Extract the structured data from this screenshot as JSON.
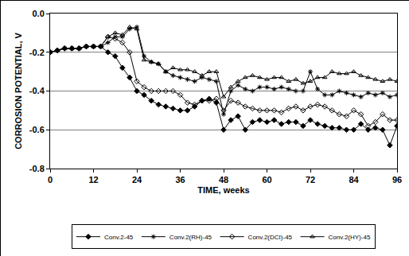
{
  "chart_data": {
    "type": "line",
    "x_label": "TIME, weeks",
    "y_label": "CORROSION POTENTIAL, V",
    "x": [
      0,
      2,
      4,
      6,
      8,
      10,
      12,
      14,
      16,
      18,
      20,
      22,
      24,
      26,
      28,
      30,
      32,
      34,
      36,
      38,
      40,
      42,
      44,
      46,
      48,
      50,
      52,
      54,
      56,
      58,
      60,
      62,
      64,
      66,
      68,
      70,
      72,
      74,
      76,
      78,
      80,
      82,
      84,
      86,
      88,
      90,
      92,
      94,
      96
    ],
    "series": [
      {
        "name": "Conv.2-45",
        "color": "#000000",
        "marker": "diamond",
        "values": [
          -0.2,
          -0.19,
          -0.18,
          -0.18,
          -0.18,
          -0.17,
          -0.17,
          -0.17,
          -0.2,
          -0.22,
          -0.28,
          -0.33,
          -0.4,
          -0.42,
          -0.45,
          -0.47,
          -0.48,
          -0.49,
          -0.5,
          -0.5,
          -0.48,
          -0.45,
          -0.44,
          -0.46,
          -0.6,
          -0.55,
          -0.53,
          -0.6,
          -0.56,
          -0.55,
          -0.56,
          -0.55,
          -0.57,
          -0.56,
          -0.56,
          -0.58,
          -0.55,
          -0.57,
          -0.58,
          -0.59,
          -0.59,
          -0.6,
          -0.6,
          -0.57,
          -0.6,
          -0.59,
          -0.6,
          -0.68,
          -0.58
        ]
      },
      {
        "name": "Conv.2(RH)-45",
        "color": "#000000",
        "marker": "asterisk-open",
        "values": [
          -0.2,
          -0.19,
          -0.18,
          -0.18,
          -0.18,
          -0.17,
          -0.17,
          -0.17,
          -0.15,
          -0.12,
          -0.12,
          -0.08,
          -0.07,
          -0.22,
          -0.25,
          -0.26,
          -0.3,
          -0.32,
          -0.33,
          -0.34,
          -0.35,
          -0.33,
          -0.34,
          -0.35,
          -0.52,
          -0.4,
          -0.37,
          -0.39,
          -0.4,
          -0.38,
          -0.38,
          -0.39,
          -0.38,
          -0.39,
          -0.4,
          -0.4,
          -0.3,
          -0.39,
          -0.42,
          -0.42,
          -0.4,
          -0.41,
          -0.42,
          -0.43,
          -0.41,
          -0.42,
          -0.41,
          -0.43,
          -0.42
        ]
      },
      {
        "name": "Conv.2(DCI)-45",
        "color": "#000000",
        "marker": "diamond-open",
        "values": [
          -0.2,
          -0.19,
          -0.18,
          -0.18,
          -0.18,
          -0.17,
          -0.17,
          -0.17,
          -0.12,
          -0.13,
          -0.15,
          -0.2,
          -0.35,
          -0.38,
          -0.4,
          -0.4,
          -0.4,
          -0.4,
          -0.42,
          -0.46,
          -0.47,
          -0.45,
          -0.45,
          -0.44,
          -0.5,
          -0.45,
          -0.46,
          -0.48,
          -0.49,
          -0.5,
          -0.5,
          -0.5,
          -0.51,
          -0.49,
          -0.48,
          -0.5,
          -0.48,
          -0.47,
          -0.48,
          -0.5,
          -0.52,
          -0.53,
          -0.5,
          -0.52,
          -0.58,
          -0.56,
          -0.52,
          -0.55,
          -0.55
        ]
      },
      {
        "name": "Conv.2(HY)-45",
        "color": "#000000",
        "marker": "triangle-up-open",
        "values": [
          -0.2,
          -0.19,
          -0.18,
          -0.18,
          -0.18,
          -0.17,
          -0.17,
          -0.17,
          -0.12,
          -0.1,
          -0.11,
          -0.07,
          -0.08,
          -0.24,
          -0.25,
          -0.26,
          -0.3,
          -0.28,
          -0.29,
          -0.29,
          -0.3,
          -0.32,
          -0.3,
          -0.3,
          -0.43,
          -0.38,
          -0.35,
          -0.33,
          -0.32,
          -0.33,
          -0.34,
          -0.33,
          -0.33,
          -0.35,
          -0.34,
          -0.36,
          -0.35,
          -0.33,
          -0.33,
          -0.3,
          -0.31,
          -0.31,
          -0.3,
          -0.32,
          -0.33,
          -0.34,
          -0.35,
          -0.34,
          -0.35
        ]
      }
    ],
    "xlim": [
      0,
      96
    ],
    "xticks": [
      0,
      12,
      24,
      36,
      48,
      60,
      72,
      84,
      96
    ],
    "ylim": [
      -0.8,
      0
    ],
    "yticks": [
      -0.8,
      -0.6,
      -0.4,
      -0.2,
      {
        "value": 0,
        "label": "0.0"
      }
    ],
    "grid": "y",
    "legend": "bottom"
  }
}
